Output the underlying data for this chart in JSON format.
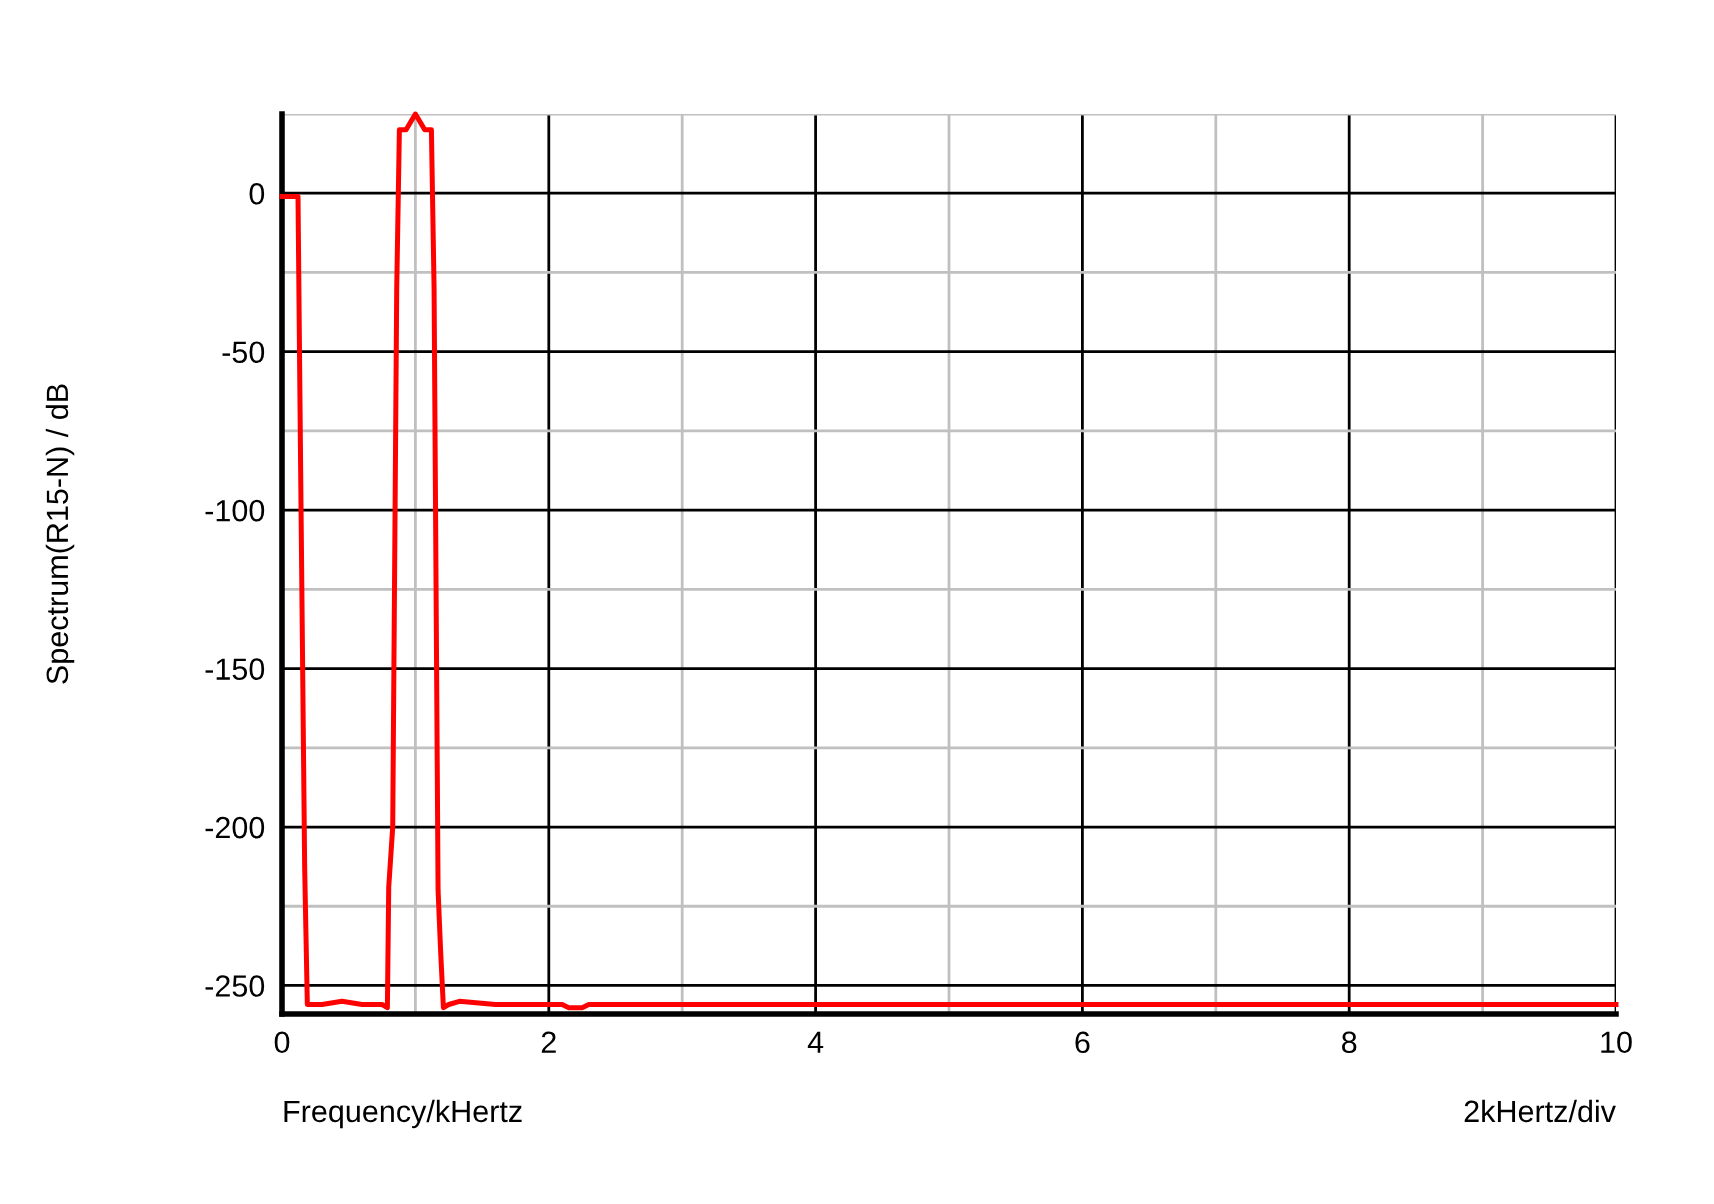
{
  "chart_data": {
    "type": "line",
    "xlabel": "Frequency/kHertz",
    "ylabel": "Spectrum(R15-N) / dB",
    "annotations": [
      "2kHertz/div"
    ],
    "grid": true,
    "marker": "none",
    "line_style": "solid",
    "xlim": [
      0,
      10
    ],
    "ylim": [
      -259,
      25
    ],
    "xticks": [
      0,
      {
        "value": 1,
        "label": null
      },
      2,
      {
        "value": 3,
        "label": null
      },
      4,
      {
        "value": 5,
        "label": null
      },
      6,
      {
        "value": 7,
        "label": null
      },
      8,
      {
        "value": 9,
        "label": null
      },
      10
    ],
    "yticks": [
      {
        "value": 25,
        "label": null
      },
      0,
      {
        "value": -25,
        "label": null
      },
      -50,
      {
        "value": -75,
        "label": null
      },
      -100,
      {
        "value": -125,
        "label": null
      },
      -150,
      {
        "value": -175,
        "label": null
      },
      -200,
      {
        "value": -225,
        "label": null
      },
      -250
    ],
    "series": [
      {
        "color": "#ff0000",
        "x": [
          0,
          0.12,
          0.13,
          0.14,
          0.17,
          0.19,
          0.2,
          0.3,
          0.45,
          0.6,
          0.75,
          0.79,
          0.8,
          0.83,
          0.86,
          0.88,
          0.93,
          1.0,
          1.07,
          1.12,
          1.14,
          1.17,
          1.19,
          1.21,
          1.25,
          1.33,
          1.6,
          2.1,
          2.15,
          2.25,
          2.3,
          3,
          5,
          7,
          10
        ],
        "values": [
          -1,
          -1,
          -45,
          -88,
          -213,
          -256,
          -256,
          -256,
          -255,
          -256,
          -256,
          -257,
          -219,
          -200,
          -30,
          20,
          20,
          25,
          20,
          20,
          -30,
          -220,
          -240,
          -257,
          -256,
          -255,
          -256,
          -256,
          -257,
          -257,
          -256,
          -256,
          -256,
          -256,
          -256
        ]
      }
    ]
  }
}
